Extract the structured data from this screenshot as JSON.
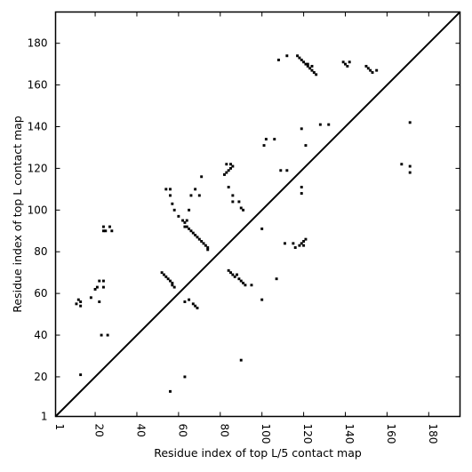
{
  "chart_data": {
    "type": "scatter",
    "xlabel": "Residue index of top L/5 contact map",
    "ylabel": "Residue index of top L contact map",
    "xlim": [
      1,
      195
    ],
    "ylim": [
      1,
      195
    ],
    "xticks": [
      "1",
      "20",
      "40",
      "60",
      "80",
      "100",
      "120",
      "140",
      "160",
      "180"
    ],
    "xtick_values": [
      1,
      20,
      40,
      60,
      80,
      100,
      120,
      140,
      160,
      180
    ],
    "yticks": [
      "1",
      "20",
      "40",
      "60",
      "80",
      "100",
      "120",
      "140",
      "160",
      "180"
    ],
    "ytick_values": [
      1,
      20,
      40,
      60,
      80,
      100,
      120,
      140,
      160,
      180
    ],
    "grid": false,
    "legend": "none",
    "diagonal_line": true,
    "marker_color": "#000000",
    "upper_triangle_points": [
      [
        108,
        172
      ],
      [
        112,
        174
      ],
      [
        117,
        174
      ],
      [
        118,
        173
      ],
      [
        119,
        172
      ],
      [
        120,
        171
      ],
      [
        121,
        170
      ],
      [
        122,
        169
      ],
      [
        123,
        168
      ],
      [
        124,
        167
      ],
      [
        125,
        166
      ],
      [
        126,
        165
      ],
      [
        122,
        170
      ],
      [
        124,
        169
      ],
      [
        139,
        171
      ],
      [
        140,
        170
      ],
      [
        141,
        169
      ],
      [
        142,
        171
      ],
      [
        150,
        169
      ],
      [
        151,
        168
      ],
      [
        152,
        167
      ],
      [
        153,
        166
      ],
      [
        155,
        167
      ],
      [
        106,
        134
      ],
      [
        102,
        134
      ],
      [
        101,
        131
      ],
      [
        119,
        139
      ],
      [
        121,
        131
      ],
      [
        128,
        141
      ],
      [
        132,
        141
      ],
      [
        171,
        142
      ],
      [
        167,
        122
      ],
      [
        171,
        121
      ],
      [
        171,
        118
      ],
      [
        109,
        119
      ],
      [
        112,
        119
      ],
      [
        119,
        111
      ],
      [
        119,
        108
      ]
    ],
    "lower_triangle_points": [
      [
        11,
        55
      ],
      [
        12,
        57
      ],
      [
        13,
        54
      ],
      [
        13,
        56
      ],
      [
        13,
        21
      ],
      [
        18,
        58
      ],
      [
        20,
        62
      ],
      [
        21,
        63
      ],
      [
        22,
        66
      ],
      [
        22,
        56
      ],
      [
        23,
        40
      ],
      [
        24,
        63
      ],
      [
        24,
        66
      ],
      [
        24,
        92
      ],
      [
        24,
        90
      ],
      [
        25,
        90
      ],
      [
        27,
        92
      ],
      [
        28,
        90
      ],
      [
        26,
        40
      ],
      [
        52,
        70
      ],
      [
        53,
        69
      ],
      [
        54,
        68
      ],
      [
        55,
        67
      ],
      [
        56,
        66
      ],
      [
        57,
        65
      ],
      [
        57,
        64
      ],
      [
        58,
        63
      ],
      [
        54,
        110
      ],
      [
        56,
        110
      ],
      [
        56,
        107
      ],
      [
        57,
        103
      ],
      [
        58,
        100
      ],
      [
        60,
        97
      ],
      [
        62,
        95
      ],
      [
        63,
        94
      ],
      [
        64,
        92
      ],
      [
        65,
        91
      ],
      [
        66,
        90
      ],
      [
        67,
        89
      ],
      [
        68,
        88
      ],
      [
        69,
        87
      ],
      [
        70,
        86
      ],
      [
        71,
        85
      ],
      [
        72,
        84
      ],
      [
        73,
        83
      ],
      [
        74,
        82
      ],
      [
        74,
        81
      ],
      [
        65,
        100
      ],
      [
        64,
        95
      ],
      [
        63,
        92
      ],
      [
        68,
        110
      ],
      [
        70,
        107
      ],
      [
        66,
        107
      ],
      [
        71,
        116
      ],
      [
        63,
        56
      ],
      [
        65,
        57
      ],
      [
        67,
        55
      ],
      [
        68,
        54
      ],
      [
        69,
        53
      ],
      [
        63,
        20
      ],
      [
        56,
        13
      ],
      [
        82,
        117
      ],
      [
        83,
        118
      ],
      [
        84,
        119
      ],
      [
        85,
        120
      ],
      [
        86,
        121
      ],
      [
        85,
        122
      ],
      [
        83,
        122
      ],
      [
        84,
        111
      ],
      [
        86,
        107
      ],
      [
        86,
        104
      ],
      [
        89,
        104
      ],
      [
        90,
        101
      ],
      [
        91,
        100
      ],
      [
        84,
        71
      ],
      [
        85,
        70
      ],
      [
        86,
        69
      ],
      [
        87,
        68
      ],
      [
        88,
        69
      ],
      [
        89,
        67
      ],
      [
        90,
        66
      ],
      [
        91,
        65
      ],
      [
        92,
        64
      ],
      [
        95,
        64
      ],
      [
        100,
        91
      ],
      [
        100,
        57
      ],
      [
        90,
        28
      ],
      [
        107,
        67
      ],
      [
        111,
        84
      ],
      [
        115,
        84
      ],
      [
        116,
        82
      ],
      [
        118,
        83
      ],
      [
        119,
        84
      ],
      [
        120,
        85
      ],
      [
        121,
        86
      ],
      [
        120,
        83
      ]
    ]
  }
}
